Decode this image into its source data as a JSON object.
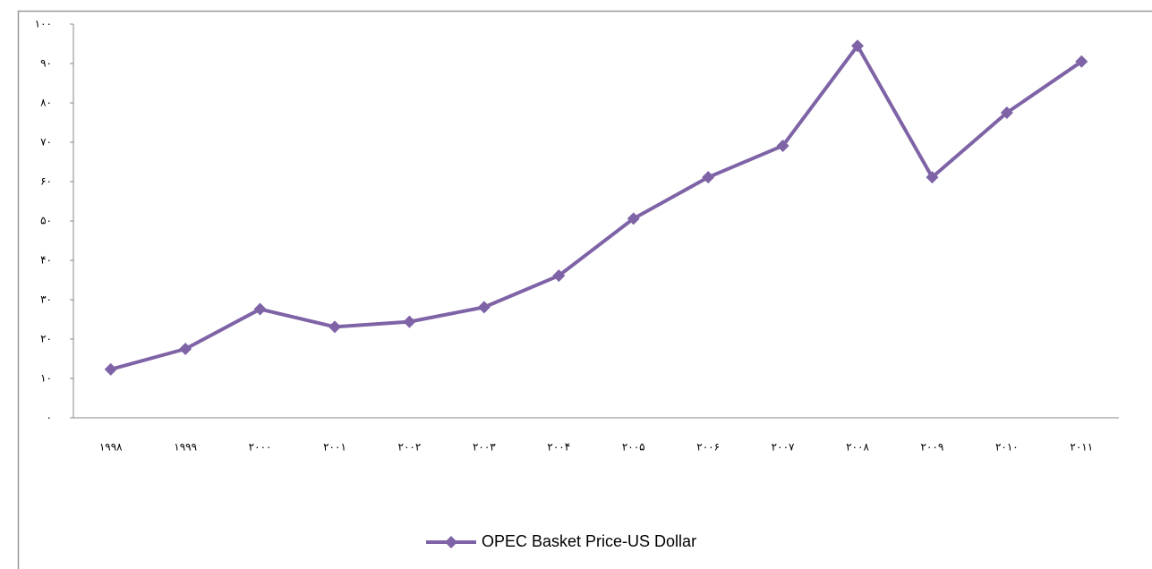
{
  "chart_data": {
    "type": "line",
    "categories": [
      "۱۹۹۸",
      "۱۹۹۹",
      "۲۰۰۰",
      "۲۰۰۱",
      "۲۰۰۲",
      "۲۰۰۳",
      "۲۰۰۴",
      "۲۰۰۵",
      "۲۰۰۶",
      "۲۰۰۷",
      "۲۰۰۸",
      "۲۰۰۹",
      "۲۰۱۰",
      "۲۰۱۱"
    ],
    "series": [
      {
        "name": "OPEC Basket Price-US Dollar",
        "color": "#7e63a6",
        "values": [
          12.3,
          17.5,
          27.6,
          23.1,
          24.4,
          28.1,
          36.1,
          50.6,
          61.1,
          69.1,
          94.5,
          61.1,
          77.5,
          90.5
        ]
      }
    ],
    "ylim": [
      0,
      100
    ],
    "yticks": [
      {
        "value": 0,
        "label": "۰"
      },
      {
        "value": 10,
        "label": "۱۰"
      },
      {
        "value": 20,
        "label": "۲۰"
      },
      {
        "value": 30,
        "label": "۳۰"
      },
      {
        "value": 40,
        "label": "۴۰"
      },
      {
        "value": 50,
        "label": "۵۰"
      },
      {
        "value": 60,
        "label": "۶۰"
      },
      {
        "value": 70,
        "label": "۷۰"
      },
      {
        "value": 80,
        "label": "۸۰"
      },
      {
        "value": 90,
        "label": "۹۰"
      },
      {
        "value": 100,
        "label": "۱۰۰"
      }
    ],
    "grid": false,
    "legend": "bottom"
  }
}
